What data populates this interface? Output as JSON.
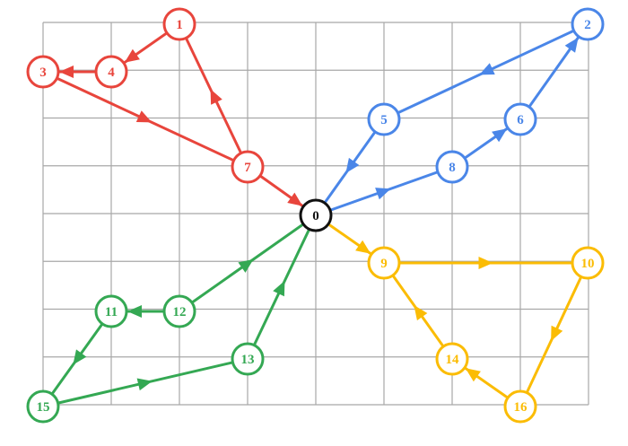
{
  "colors": {
    "red": "#e8453c",
    "blue": "#4a86e8",
    "green": "#34a853",
    "yellow": "#fbbc04",
    "black": "#111111",
    "grid": "#a8a8a8"
  },
  "nodes": [
    {
      "id": "0",
      "label": "0",
      "group": "black"
    },
    {
      "id": "1",
      "label": "1",
      "group": "red"
    },
    {
      "id": "2",
      "label": "2",
      "group": "blue"
    },
    {
      "id": "3",
      "label": "3",
      "group": "red"
    },
    {
      "id": "4",
      "label": "4",
      "group": "red"
    },
    {
      "id": "5",
      "label": "5",
      "group": "blue"
    },
    {
      "id": "6",
      "label": "6",
      "group": "blue"
    },
    {
      "id": "7",
      "label": "7",
      "group": "red"
    },
    {
      "id": "8",
      "label": "8",
      "group": "blue"
    },
    {
      "id": "9",
      "label": "9",
      "group": "yellow"
    },
    {
      "id": "10",
      "label": "10",
      "group": "yellow"
    },
    {
      "id": "11",
      "label": "11",
      "group": "green"
    },
    {
      "id": "12",
      "label": "12",
      "group": "green"
    },
    {
      "id": "13",
      "label": "13",
      "group": "green"
    },
    {
      "id": "14",
      "label": "14",
      "group": "yellow"
    },
    {
      "id": "15",
      "label": "15",
      "group": "green"
    },
    {
      "id": "16",
      "label": "16",
      "group": "yellow"
    }
  ],
  "edges": [
    {
      "from": "3",
      "to": "7",
      "group": "red"
    },
    {
      "from": "7",
      "to": "1",
      "group": "red"
    },
    {
      "from": "1",
      "to": "4",
      "group": "red"
    },
    {
      "from": "4",
      "to": "3",
      "group": "red"
    },
    {
      "from": "7",
      "to": "0",
      "group": "red"
    },
    {
      "from": "0",
      "to": "8",
      "group": "blue"
    },
    {
      "from": "8",
      "to": "6",
      "group": "blue"
    },
    {
      "from": "6",
      "to": "2",
      "group": "blue"
    },
    {
      "from": "2",
      "to": "5",
      "group": "blue"
    },
    {
      "from": "5",
      "to": "0",
      "group": "blue"
    },
    {
      "from": "0",
      "to": "9",
      "group": "yellow"
    },
    {
      "from": "9",
      "to": "10",
      "group": "yellow"
    },
    {
      "from": "10",
      "to": "16",
      "group": "yellow"
    },
    {
      "from": "16",
      "to": "14",
      "group": "yellow"
    },
    {
      "from": "14",
      "to": "9",
      "group": "yellow"
    },
    {
      "from": "12",
      "to": "0",
      "group": "green"
    },
    {
      "from": "12",
      "to": "11",
      "group": "green"
    },
    {
      "from": "11",
      "to": "15",
      "group": "green"
    },
    {
      "from": "15",
      "to": "13",
      "group": "green"
    },
    {
      "from": "13",
      "to": "0",
      "group": "green"
    }
  ]
}
